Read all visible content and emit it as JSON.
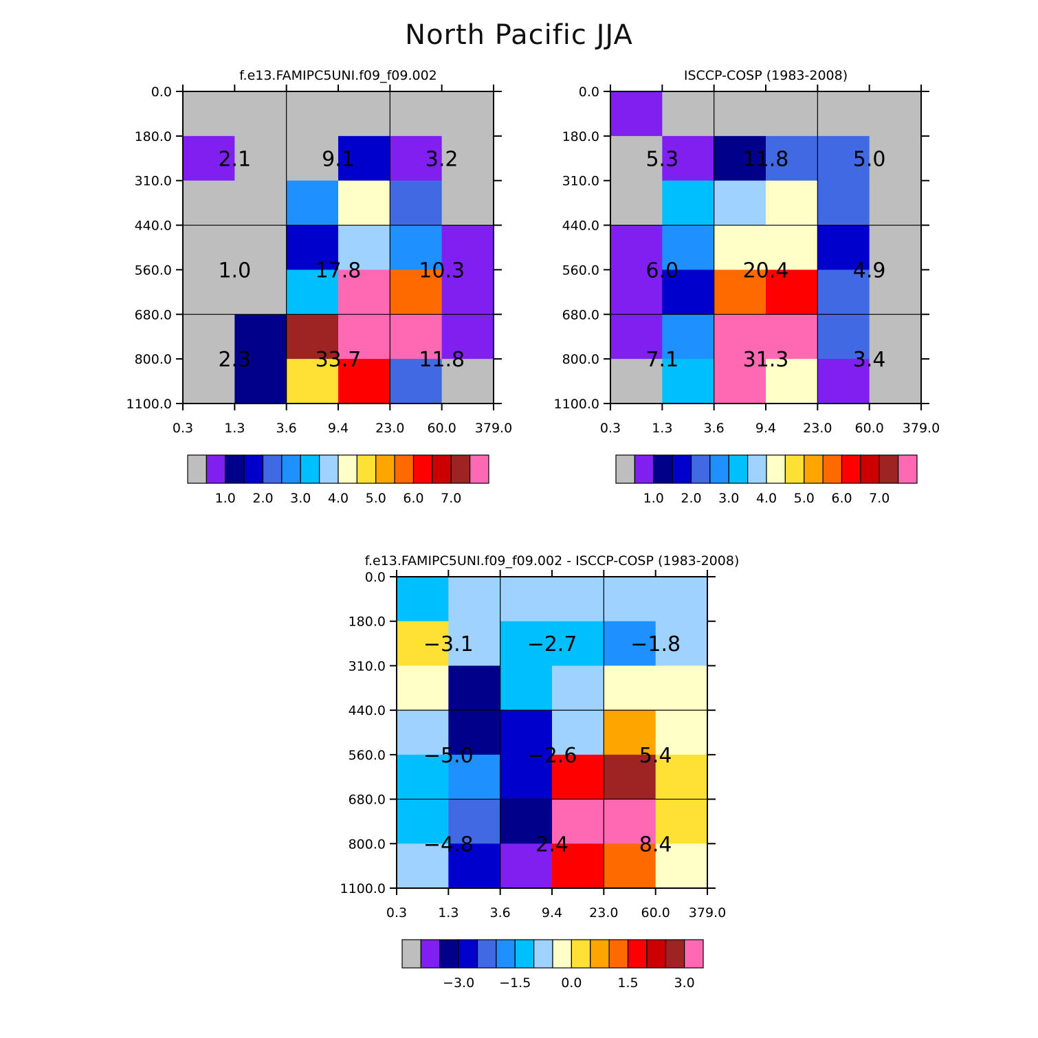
{
  "title": "North Pacific JJA",
  "colors": {
    "palette": [
      "#bebebe",
      "#8020f0",
      "#00008b",
      "#0000cd",
      "#4169e1",
      "#1e90ff",
      "#00bfff",
      "#a0d2ff",
      "#ffffc8",
      "#ffe135",
      "#ffa500",
      "#ff6a00",
      "#ff0000",
      "#cd0000",
      "#9e2323",
      "#ff69b4"
    ],
    "background": "#ffffff",
    "grid": "#000000"
  },
  "chart_data": [
    {
      "type": "heatmap",
      "title": "f.e13.FAMIPC5UNI.f09_f09.002",
      "x_tick_labels": [
        "0.3",
        "1.3",
        "3.6",
        "9.4",
        "23.0",
        "60.0",
        "379.0"
      ],
      "y_tick_labels": [
        "0.0",
        "180.0",
        "310.0",
        "440.0",
        "560.0",
        "680.0",
        "800.0",
        "1100.0"
      ],
      "cell_color_index": [
        [
          0,
          0,
          0,
          0,
          0,
          0
        ],
        [
          1,
          0,
          0,
          3,
          1,
          0
        ],
        [
          0,
          0,
          5,
          8,
          4,
          0
        ],
        [
          0,
          0,
          3,
          7,
          5,
          1
        ],
        [
          0,
          0,
          6,
          15,
          11,
          1
        ],
        [
          0,
          2,
          14,
          15,
          15,
          1
        ],
        [
          0,
          2,
          9,
          12,
          4,
          0
        ]
      ],
      "group_values": [
        [
          2.1,
          9.1,
          3.2
        ],
        [
          1.0,
          17.8,
          10.3
        ],
        [
          2.3,
          33.7,
          11.8
        ]
      ],
      "group_labels": [
        [
          "2.1",
          "9.1",
          "3.2"
        ],
        [
          "1.0",
          "17.8",
          "10.3"
        ],
        [
          "2.3",
          "33.7",
          "11.8"
        ]
      ],
      "colorbar_labels": [
        "1.0",
        "2.0",
        "3.0",
        "4.0",
        "5.0",
        "6.0",
        "7.0"
      ]
    },
    {
      "type": "heatmap",
      "title": "ISCCP-COSP (1983-2008)",
      "x_tick_labels": [
        "0.3",
        "1.3",
        "3.6",
        "9.4",
        "23.0",
        "60.0",
        "379.0"
      ],
      "y_tick_labels": [
        "0.0",
        "180.0",
        "310.0",
        "440.0",
        "560.0",
        "680.0",
        "800.0",
        "1100.0"
      ],
      "cell_color_index": [
        [
          1,
          0,
          0,
          0,
          0,
          0
        ],
        [
          0,
          1,
          2,
          4,
          4,
          0
        ],
        [
          0,
          6,
          7,
          8,
          4,
          0
        ],
        [
          1,
          5,
          8,
          8,
          3,
          0
        ],
        [
          1,
          3,
          11,
          12,
          4,
          0
        ],
        [
          1,
          5,
          15,
          15,
          4,
          0
        ],
        [
          0,
          6,
          15,
          8,
          1,
          0
        ]
      ],
      "group_values": [
        [
          5.3,
          11.8,
          5.0
        ],
        [
          6.0,
          20.4,
          4.9
        ],
        [
          7.1,
          31.3,
          3.4
        ]
      ],
      "group_labels": [
        [
          "5.3",
          "11.8",
          "5.0"
        ],
        [
          "6.0",
          "20.4",
          "4.9"
        ],
        [
          "7.1",
          "31.3",
          "3.4"
        ]
      ],
      "colorbar_labels": [
        "1.0",
        "2.0",
        "3.0",
        "4.0",
        "5.0",
        "6.0",
        "7.0"
      ]
    },
    {
      "type": "heatmap",
      "title": "f.e13.FAMIPC5UNI.f09_f09.002 - ISCCP-COSP (1983-2008)",
      "x_tick_labels": [
        "0.3",
        "1.3",
        "3.6",
        "9.4",
        "23.0",
        "60.0",
        "379.0"
      ],
      "y_tick_labels": [
        "0.0",
        "180.0",
        "310.0",
        "440.0",
        "560.0",
        "680.0",
        "800.0",
        "1100.0"
      ],
      "cell_color_index": [
        [
          6,
          7,
          7,
          7,
          7,
          7
        ],
        [
          9,
          7,
          6,
          6,
          5,
          7
        ],
        [
          8,
          2,
          6,
          7,
          8,
          8
        ],
        [
          7,
          2,
          3,
          7,
          10,
          8
        ],
        [
          6,
          5,
          3,
          12,
          14,
          9
        ],
        [
          6,
          4,
          2,
          15,
          15,
          9
        ],
        [
          7,
          3,
          1,
          12,
          11,
          8
        ]
      ],
      "group_values": [
        [
          -3.1,
          -2.7,
          -1.8
        ],
        [
          -5.0,
          -2.6,
          5.4
        ],
        [
          -4.8,
          2.4,
          8.4
        ]
      ],
      "group_labels": [
        [
          "−3.1",
          "−2.7",
          "−1.8"
        ],
        [
          "−5.0",
          "−2.6",
          "5.4"
        ],
        [
          "−4.8",
          "2.4",
          "8.4"
        ]
      ],
      "colorbar_labels": [
        "−3.0",
        "−1.5",
        "0.0",
        "1.5",
        "3.0"
      ]
    }
  ]
}
